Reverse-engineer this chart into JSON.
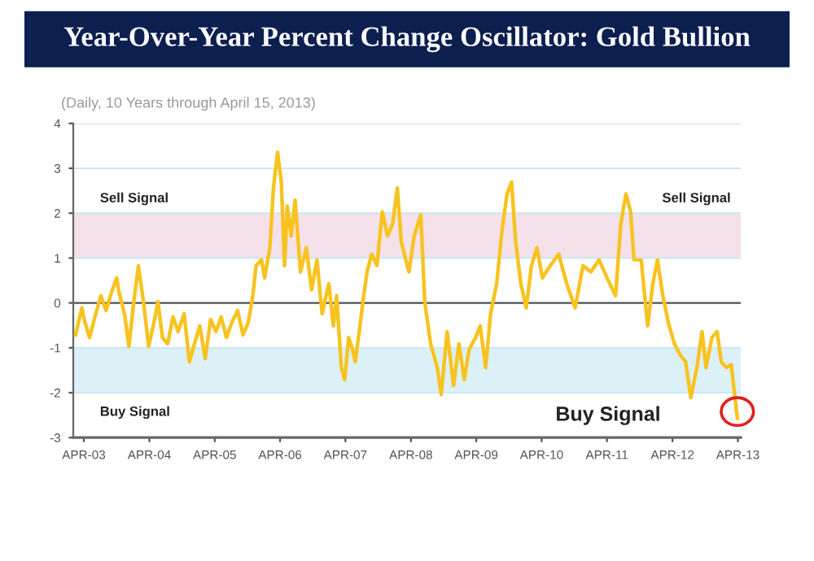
{
  "chart_data": {
    "type": "line",
    "title": "Year-Over-Year Percent Change Oscillator: Gold Bullion",
    "subtitle": "(Daily, 10 Years through April 15, 2013)",
    "xlim": [
      "2003-02-15",
      "2013-05-01"
    ],
    "ylim": [
      -3,
      4
    ],
    "yticks": [
      -3,
      -2,
      -1,
      0,
      1,
      2,
      3,
      4
    ],
    "xticks": [
      {
        "value": "2003-04-15",
        "label": "APR-03"
      },
      {
        "value": "2004-04-15",
        "label": "APR-04"
      },
      {
        "value": "2005-04-15",
        "label": "APR-05"
      },
      {
        "value": "2006-04-15",
        "label": "APR-06"
      },
      {
        "value": "2007-04-15",
        "label": "APR-07"
      },
      {
        "value": "2008-04-15",
        "label": "APR-08"
      },
      {
        "value": "2009-04-15",
        "label": "APR-09"
      },
      {
        "value": "2010-04-15",
        "label": "APR-10"
      },
      {
        "value": "2011-04-15",
        "label": "APR-11"
      },
      {
        "value": "2012-04-15",
        "label": "APR-12"
      },
      {
        "value": "2013-04-15",
        "label": "APR-13"
      }
    ],
    "grid": "y",
    "marker": "none",
    "line_style": "solid",
    "bands": [
      {
        "axis": "y",
        "from": 1,
        "to": 2,
        "color": "#f4e1ea"
      },
      {
        "axis": "y",
        "from": -2,
        "to": -1,
        "color": "#dcf0f8"
      }
    ],
    "annotations": [
      "Sell Signal",
      "Sell Signal",
      "Buy Signal",
      "Buy Signal"
    ],
    "series": [
      {
        "color": "#f8c31f",
        "x": [
          "2003-02-28",
          "2003-04-04",
          "2003-04-19",
          "2003-05-17",
          "2003-06-16",
          "2003-07-19",
          "2003-08-17",
          "2003-09-16",
          "2003-10-15",
          "2003-10-29",
          "2003-11-28",
          "2003-12-23",
          "2004-01-15",
          "2004-02-14",
          "2004-03-13",
          "2004-04-11",
          "2004-05-14",
          "2004-06-02",
          "2004-06-27",
          "2004-07-26",
          "2004-08-25",
          "2004-09-23",
          "2004-10-26",
          "2004-11-25",
          "2004-12-23",
          "2005-01-22",
          "2005-02-21",
          "2005-03-23",
          "2005-04-22",
          "2005-05-21",
          "2005-06-20",
          "2005-07-19",
          "2005-08-21",
          "2005-09-20",
          "2005-10-19",
          "2005-11-14",
          "2005-12-02",
          "2006-01-01",
          "2006-01-19",
          "2006-02-17",
          "2006-03-09",
          "2006-04-01",
          "2006-04-22",
          "2006-05-10",
          "2006-05-25",
          "2006-06-16",
          "2006-07-08",
          "2006-08-07",
          "2006-09-09",
          "2006-10-08",
          "2006-11-07",
          "2006-12-06",
          "2007-01-12",
          "2007-02-07",
          "2007-02-25",
          "2007-03-23",
          "2007-04-11",
          "2007-05-03",
          "2007-05-25",
          "2007-06-09",
          "2007-07-01",
          "2007-07-26",
          "2007-08-14",
          "2007-09-09",
          "2007-10-08",
          "2007-11-07",
          "2007-12-06",
          "2008-01-04",
          "2008-01-30",
          "2008-02-21",
          "2008-04-04",
          "2008-05-03",
          "2008-06-09",
          "2008-07-01",
          "2008-08-03",
          "2008-09-09",
          "2008-10-01",
          "2008-11-03",
          "2008-12-09",
          "2009-01-08",
          "2009-02-07",
          "2009-03-06",
          "2009-04-11",
          "2009-05-07",
          "2009-06-06",
          "2009-07-04",
          "2009-08-07",
          "2009-09-06",
          "2009-10-04",
          "2009-10-29",
          "2009-11-21",
          "2009-12-20",
          "2010-01-19",
          "2010-02-17",
          "2010-03-20",
          "2010-04-19",
          "2010-06-02",
          "2010-07-19",
          "2010-09-02",
          "2010-10-19",
          "2010-12-02",
          "2011-01-15",
          "2011-03-02",
          "2011-04-15",
          "2011-06-02",
          "2011-07-01",
          "2011-07-30",
          "2011-08-25",
          "2011-09-13",
          "2011-10-23",
          "2011-11-28",
          "2011-12-27",
          "2012-01-22",
          "2012-02-21",
          "2012-03-27",
          "2012-04-26",
          "2012-05-29",
          "2012-06-27",
          "2012-07-26",
          "2012-08-29",
          "2012-09-27",
          "2012-10-19",
          "2012-11-21",
          "2012-12-20",
          "2013-01-12",
          "2013-02-10",
          "2013-03-09",
          "2013-04-12"
        ],
        "values": [
          -0.71,
          -0.11,
          -0.4,
          -0.77,
          -0.31,
          0.16,
          -0.17,
          0.23,
          0.56,
          0.23,
          -0.24,
          -0.97,
          -0.11,
          0.83,
          0.03,
          -0.97,
          -0.37,
          0.03,
          -0.77,
          -0.91,
          -0.31,
          -0.64,
          -0.24,
          -1.31,
          -0.91,
          -0.51,
          -1.24,
          -0.37,
          -0.64,
          -0.31,
          -0.77,
          -0.44,
          -0.17,
          -0.71,
          -0.44,
          0.16,
          0.83,
          0.96,
          0.56,
          1.23,
          2.56,
          3.36,
          2.69,
          0.83,
          2.16,
          1.49,
          2.29,
          0.69,
          1.23,
          0.29,
          0.96,
          -0.24,
          0.43,
          -0.51,
          0.16,
          -1.44,
          -1.71,
          -0.77,
          -1.04,
          -1.31,
          -0.64,
          0.16,
          0.69,
          1.09,
          0.83,
          2.03,
          1.49,
          1.76,
          2.56,
          1.36,
          0.69,
          1.49,
          1.96,
          0.03,
          -0.91,
          -1.44,
          -2.04,
          -0.64,
          -1.84,
          -0.91,
          -1.71,
          -1.04,
          -0.77,
          -0.51,
          -1.44,
          -0.24,
          0.43,
          1.63,
          2.43,
          2.69,
          1.36,
          0.43,
          -0.11,
          0.83,
          1.23,
          0.56,
          0.83,
          1.09,
          0.43,
          -0.11,
          0.83,
          0.69,
          0.96,
          0.56,
          0.16,
          1.76,
          2.43,
          2.03,
          0.96,
          0.96,
          -0.51,
          0.43,
          0.96,
          0.16,
          -0.51,
          -0.91,
          -1.17,
          -1.31,
          -2.11,
          -1.44,
          -0.64,
          -1.44,
          -0.77,
          -0.64,
          -1.31,
          -1.44,
          -1.37,
          -2.57
        ]
      }
    ]
  }
}
